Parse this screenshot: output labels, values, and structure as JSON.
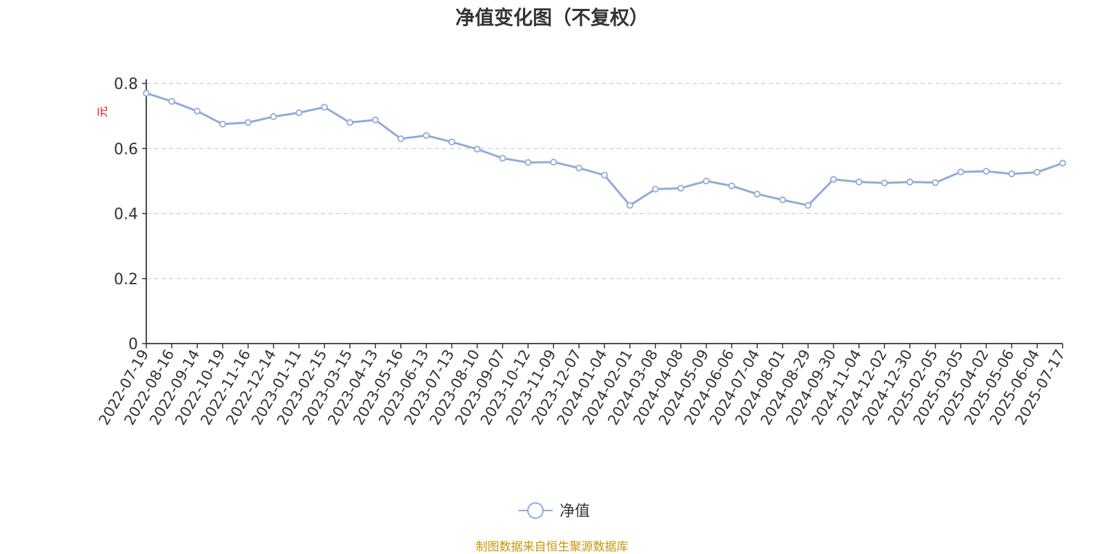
{
  "chart_data": {
    "type": "line",
    "title": "净值变化图（不复权）",
    "ylabel": "元",
    "ylabel_color": "#e60012",
    "ylim": [
      0,
      0.8
    ],
    "y_ticks": [
      "0",
      "0.2",
      "0.4",
      "0.6",
      "0.8"
    ],
    "grid": true,
    "legend_position": "bottom",
    "series_color": "#8faadc",
    "categories": [
      "2022-07-19",
      "2022-08-16",
      "2022-09-14",
      "2022-10-19",
      "2022-11-16",
      "2022-12-14",
      "2023-01-11",
      "2023-02-15",
      "2023-03-15",
      "2023-04-13",
      "2023-05-16",
      "2023-06-13",
      "2023-07-13",
      "2023-08-10",
      "2023-09-07",
      "2023-10-12",
      "2023-11-09",
      "2023-12-07",
      "2024-01-04",
      "2024-02-01",
      "2024-03-08",
      "2024-04-08",
      "2024-05-09",
      "2024-06-06",
      "2024-07-04",
      "2024-08-01",
      "2024-08-29",
      "2024-09-30",
      "2024-11-04",
      "2024-12-02",
      "2024-12-30",
      "2025-02-05",
      "2025-03-05",
      "2025-04-02",
      "2025-05-06",
      "2025-06-04",
      "2025-07-17"
    ],
    "series": [
      {
        "name": "净值",
        "values": [
          0.77,
          0.745,
          0.715,
          0.675,
          0.68,
          0.698,
          0.71,
          0.727,
          0.68,
          0.688,
          0.63,
          0.64,
          0.62,
          0.598,
          0.57,
          0.557,
          0.558,
          0.54,
          0.518,
          0.425,
          0.475,
          0.478,
          0.5,
          0.485,
          0.46,
          0.442,
          0.425,
          0.505,
          0.497,
          0.494,
          0.497,
          0.495,
          0.528,
          0.53,
          0.522,
          0.527,
          0.555
        ]
      }
    ]
  },
  "footer": {
    "source": "制图数据来自恒生聚源数据库"
  }
}
